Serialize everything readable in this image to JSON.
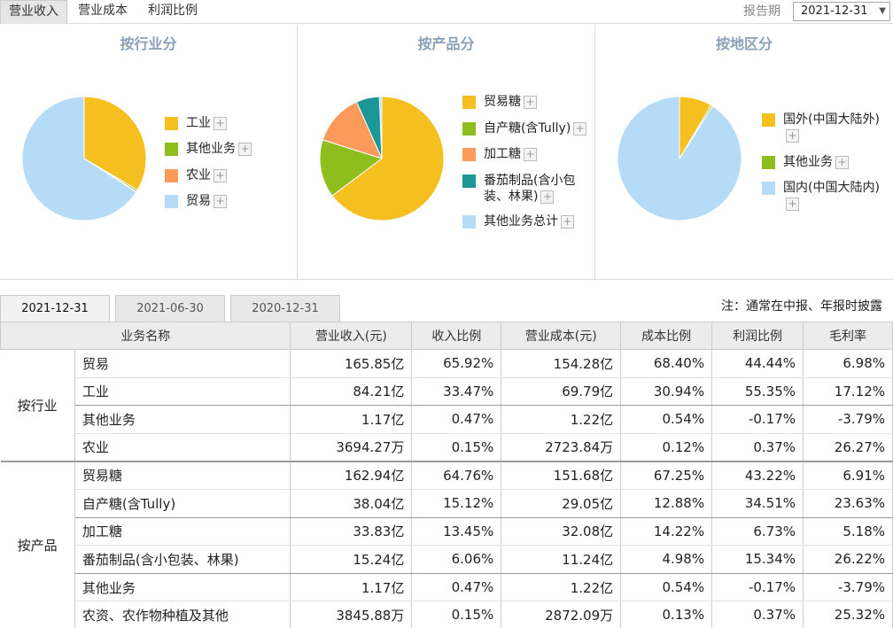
{
  "top_tabs": [
    "营业收入",
    "营业成本",
    "利润比例"
  ],
  "report_period": {
    "label": "报告期",
    "value": "2021-12-31"
  },
  "charts": [
    {
      "title": "按行业分",
      "slices": [
        {
          "label": "工业",
          "value": 33.47,
          "color": "#f5c01f"
        },
        {
          "label": "其他业务",
          "value": 0.47,
          "color": "#8dbe1c"
        },
        {
          "label": "农业",
          "value": 0.15,
          "color": "#fb9a5b"
        },
        {
          "label": "贸易",
          "value": 65.92,
          "color": "#b6dbf7"
        }
      ]
    },
    {
      "title": "按产品分",
      "slices": [
        {
          "label": "贸易糖",
          "value": 64.76,
          "color": "#f5c01f"
        },
        {
          "label": "自产糖(含Tully)",
          "value": 15.12,
          "color": "#8dbe1c"
        },
        {
          "label": "加工糖",
          "value": 13.45,
          "color": "#fb9a5b"
        },
        {
          "label": "番茄制品(含小包装、林果)",
          "value": 6.06,
          "color": "#1d9696"
        },
        {
          "label": "其他业务总计",
          "value": 0.62,
          "color": "#b6dbf7"
        }
      ]
    },
    {
      "title": "按地区分",
      "slices": [
        {
          "label": "国外(中国大陆外)",
          "value": 8.5,
          "color": "#f5c01f"
        },
        {
          "label": "其他业务",
          "value": 0.47,
          "color": "#8dbe1c"
        },
        {
          "label": "国内(中国大陆内)",
          "value": 91.03,
          "color": "#b6dbf7"
        }
      ]
    }
  ],
  "date_tabs": [
    "2021-12-31",
    "2021-06-30",
    "2020-12-31"
  ],
  "note": "注：通常在中报、年报时披露",
  "table": {
    "headers": [
      "业务名称",
      "营业收入(元)",
      "收入比例",
      "营业成本(元)",
      "成本比例",
      "利润比例",
      "毛利率"
    ],
    "groups": [
      {
        "name": "按行业",
        "rows": [
          [
            "贸易",
            "165.85亿",
            "65.92%",
            "154.28亿",
            "68.40%",
            "44.44%",
            "6.98%"
          ],
          [
            "工业",
            "84.21亿",
            "33.47%",
            "69.79亿",
            "30.94%",
            "55.35%",
            "17.12%"
          ],
          [
            "其他业务",
            "1.17亿",
            "0.47%",
            "1.22亿",
            "0.54%",
            "-0.17%",
            "-3.79%"
          ],
          [
            "农业",
            "3694.27万",
            "0.15%",
            "2723.84万",
            "0.12%",
            "0.37%",
            "26.27%"
          ]
        ]
      },
      {
        "name": "按产品",
        "rows": [
          [
            "贸易糖",
            "162.94亿",
            "64.76%",
            "151.68亿",
            "67.25%",
            "43.22%",
            "6.91%"
          ],
          [
            "自产糖(含Tully)",
            "38.04亿",
            "15.12%",
            "29.05亿",
            "12.88%",
            "34.51%",
            "23.63%"
          ],
          [
            "加工糖",
            "33.83亿",
            "13.45%",
            "32.08亿",
            "14.22%",
            "6.73%",
            "5.18%"
          ],
          [
            "番茄制品(含小包装、林果)",
            "15.24亿",
            "6.06%",
            "11.24亿",
            "4.98%",
            "15.34%",
            "26.22%"
          ],
          [
            "其他业务",
            "1.17亿",
            "0.47%",
            "1.22亿",
            "0.54%",
            "-0.17%",
            "-3.79%"
          ],
          [
            "农资、农作物种植及其他",
            "3845.88万",
            "0.15%",
            "2872.09万",
            "0.13%",
            "0.37%",
            "25.32%"
          ]
        ]
      }
    ]
  }
}
